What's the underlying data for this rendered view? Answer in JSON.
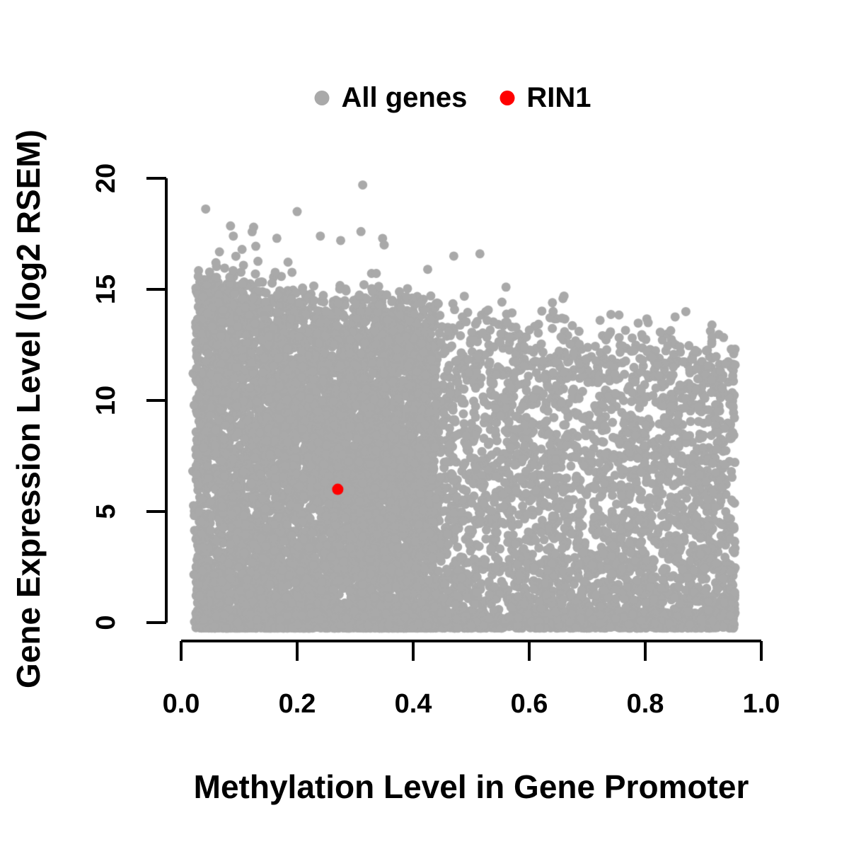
{
  "figure": {
    "background": "#ffffff",
    "text_color": "#000000",
    "axis_color": "#000000"
  },
  "legend": {
    "position": "top-center",
    "items": [
      {
        "label": "All genes",
        "color": "#a9a9a9"
      },
      {
        "label": "RIN1",
        "color": "#ff0000"
      }
    ]
  },
  "chart_data": {
    "type": "scatter",
    "title": "",
    "xlabel": "Methylation Level in Gene Promoter",
    "ylabel": "Gene Expression Level (log2 RSEM)",
    "xlim": [
      0,
      1
    ],
    "ylim": [
      0,
      20
    ],
    "grid": false,
    "legend_position": "top-center",
    "x_ticks": {
      "values": [
        0.0,
        0.2,
        0.4,
        0.6,
        0.8,
        1.0
      ],
      "labels": [
        "0.0",
        "0.2",
        "0.4",
        "0.6",
        "0.8",
        "1.0"
      ]
    },
    "y_ticks": {
      "values": [
        0,
        5,
        10,
        15,
        20
      ],
      "labels": [
        "0",
        "5",
        "10",
        "15",
        "20"
      ]
    },
    "series": [
      {
        "name": "All genes",
        "color": "#a9a9a9",
        "marker": "filled-circle",
        "marker_radius_px": 6.5,
        "n_points": 12000,
        "x_range": [
          0.015,
          0.965
        ],
        "y_range": [
          -0.25,
          19.7
        ],
        "distribution": {
          "seed": 42,
          "description": "negative trend cloud: solid block for x<0.45 spanning y=0 to ceiling; progressively sparser to x=0.96; expression ceiling falls with methylation; dense band hugging y=0 across full x range; scattered high outliers above ceiling",
          "x_mixture": [
            {
              "weight": 0.6,
              "min": 0.025,
              "max": 0.44,
              "pow": 1.0
            },
            {
              "weight": 0.32,
              "min": 0.3,
              "max": 0.955,
              "pow": 0.9
            },
            {
              "weight": 0.08,
              "min": 0.02,
              "max": 0.955,
              "pow": 1.0
            }
          ],
          "y_ceiling": {
            "intercept": 15.4,
            "slope": -3.3,
            "noise_sd": 0.55
          },
          "y_pow_by_component": [
            1.0,
            1.35,
            1.0
          ],
          "bottom_cluster": {
            "fraction": 0.22,
            "min": -0.25,
            "max": 0.45,
            "pow": 1.6
          },
          "outliers": {
            "count": 26,
            "x_min": 0.04,
            "x_span": 0.62,
            "x_pow": 1.3,
            "y_above": 0.4,
            "y_span": 3.1,
            "y_pow": 2.4,
            "y_max": 19.3
          }
        },
        "notable_points": [
          [
            0.313,
            19.7
          ],
          [
            0.2,
            18.5
          ],
          [
            0.125,
            17.8
          ],
          [
            0.31,
            17.6
          ],
          [
            0.09,
            17.4
          ],
          [
            0.24,
            17.4
          ],
          [
            0.165,
            17.3
          ],
          [
            0.275,
            17.2
          ],
          [
            0.35,
            17.0
          ],
          [
            0.105,
            16.8
          ],
          [
            0.515,
            16.6
          ],
          [
            0.47,
            16.5
          ],
          [
            0.06,
            16.2
          ],
          [
            0.425,
            15.9
          ],
          [
            0.56,
            15.1
          ],
          [
            0.66,
            14.7
          ],
          [
            0.64,
            14.4
          ],
          [
            0.87,
            14.0
          ],
          [
            0.805,
            13.5
          ],
          [
            0.915,
            13.4
          ],
          [
            0.955,
            11.6
          ]
        ]
      },
      {
        "name": "RIN1",
        "color": "#ff0000",
        "marker": "filled-circle",
        "marker_radius_px": 8,
        "points": [
          [
            0.27,
            6.0
          ]
        ]
      }
    ]
  }
}
